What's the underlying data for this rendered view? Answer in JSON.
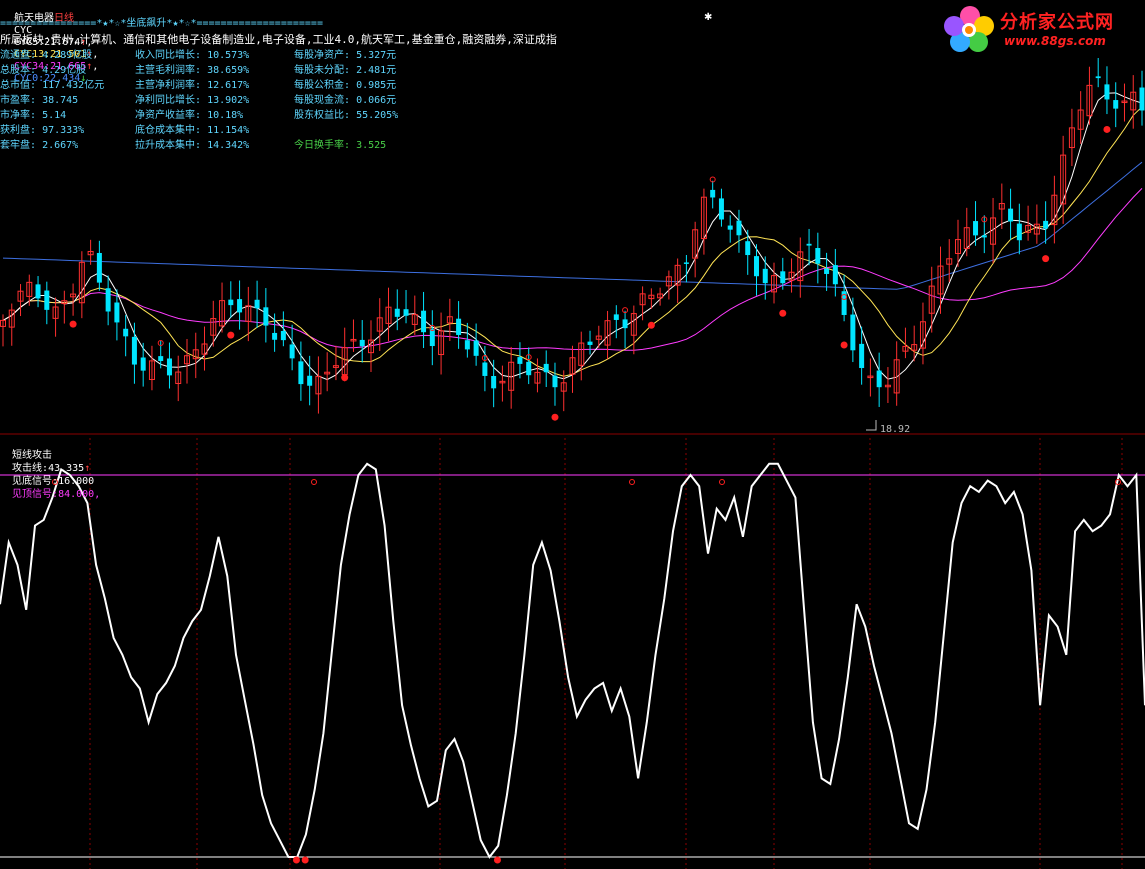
{
  "header": {
    "stock_name": "航天电器",
    "period": "日线",
    "indicator": "CYC",
    "cyc5_label": "CYC5:",
    "cyc5_value": "21.674",
    "cyc13_label": "CYC13:",
    "cyc13_value": "21.501",
    "cyc34_label": "CYC34:",
    "cyc34_value": "21.665",
    "cyc0_label": "CYC0:",
    "cyc0_value": "22.434",
    "up_arrow": "↑",
    "down_arrow": "↓",
    "separator": "================*★*☆*坐底飙升*★*☆*=====================",
    "sector": "所属板块:贵州,计算机、通信和其他电子设备制造业,电子设备,工业4.0,航天军工,基金重仓,融资融券,深证成指"
  },
  "fundamentals": {
    "col1": [
      {
        "label": "流通盘:",
        "value": "4.289亿股"
      },
      {
        "label": "总股本:",
        "value": "4.29亿股"
      },
      {
        "label": "总市值:",
        "value": "117.432亿元"
      },
      {
        "label": "市盈率:",
        "value": "38.745"
      },
      {
        "label": "市净率:",
        "value": "5.14"
      },
      {
        "label": "获利盘:",
        "value": "97.333%"
      },
      {
        "label": "套牢盘:",
        "value": "2.667%"
      }
    ],
    "col2": [
      {
        "label": "收入同比增长:",
        "value": "10.573%"
      },
      {
        "label": "主营毛利润率:",
        "value": "38.659%"
      },
      {
        "label": "主营净利润率:",
        "value": "12.617%"
      },
      {
        "label": "净利同比增长:",
        "value": "13.902%"
      },
      {
        "label": "净资产收益率:",
        "value": "10.18%"
      },
      {
        "label": "底仓成本集中:",
        "value": "11.154%"
      },
      {
        "label": "拉升成本集中:",
        "value": "14.342%"
      }
    ],
    "col3": [
      {
        "label": "每股净资产:",
        "value": "5.327元"
      },
      {
        "label": "每股未分配:",
        "value": "2.481元"
      },
      {
        "label": "每股公积金:",
        "value": "0.985元"
      },
      {
        "label": "每股现金流:",
        "value": "0.066元"
      },
      {
        "label": "股东权益比:",
        "value": "55.205%"
      },
      {
        "label": "今日换手率:",
        "value": "3.525"
      }
    ]
  },
  "watermark": {
    "brand": "分析家公式网",
    "site": "www.88gs.com"
  },
  "colors": {
    "up": "#ff3030",
    "down": "#00e5ff",
    "cyc5": "#ffffff",
    "cyc13": "#ffe455",
    "cyc34": "#ff3cff",
    "cyc0": "#3d6fe0",
    "marker": "#ff2020",
    "attack_line": "#ffffff",
    "top_signal": "#ff3cff",
    "bottom_signal": "#ffffff",
    "grid": "#8b0000"
  },
  "chart_data": [
    {
      "type": "candlestick",
      "title": "航天电器 日线",
      "low_annotation": "18.92",
      "note": "price panel with CYC moving-cost lines",
      "ylim": [
        18.5,
        27.5
      ],
      "series_names": [
        "CYC5",
        "CYC13",
        "CYC34",
        "CYC0"
      ]
    },
    {
      "type": "line",
      "title": "短线攻击",
      "series": [
        {
          "name": "攻击线",
          "value_label": "43.335"
        },
        {
          "name": "见底信号",
          "value_label": "16.000"
        },
        {
          "name": "见顶信号",
          "value_label": "84.000"
        }
      ],
      "ylim": [
        15,
        86
      ],
      "attack_line": [
        61,
        72,
        68,
        60,
        75,
        76,
        80,
        85,
        84,
        82,
        79,
        68,
        62,
        55,
        52,
        48,
        46,
        40,
        45,
        47,
        50,
        55,
        58,
        60,
        66,
        73,
        66,
        52,
        44,
        36,
        27,
        22,
        19,
        16,
        16,
        20,
        28,
        38,
        53,
        68,
        77,
        84,
        86,
        85,
        75,
        58,
        43,
        36,
        30,
        25,
        26,
        35,
        37,
        33,
        26,
        19,
        16,
        18,
        27,
        38,
        52,
        68,
        72,
        67,
        58,
        48,
        41,
        44,
        46,
        47,
        42,
        46,
        41,
        30,
        40,
        52,
        62,
        74,
        82,
        84,
        82,
        70,
        78,
        76,
        80,
        73,
        82,
        84,
        86,
        86,
        83,
        80,
        60,
        40,
        30,
        29,
        37,
        48,
        61,
        57,
        50,
        44,
        38,
        30,
        22,
        21,
        28,
        40,
        56,
        72,
        79,
        82,
        81,
        83,
        82,
        79,
        81,
        77,
        67,
        43,
        59,
        57,
        52,
        74,
        76,
        74,
        75,
        77,
        84,
        82,
        84,
        43
      ]
    }
  ],
  "indicator_panel": {
    "name": "短线攻击",
    "attack_label": "攻击线:",
    "attack_value": "43.335",
    "bottom_label": "见底信号:",
    "bottom_value": "16.000",
    "top_label": "见顶信号:",
    "top_value": "84.000"
  }
}
